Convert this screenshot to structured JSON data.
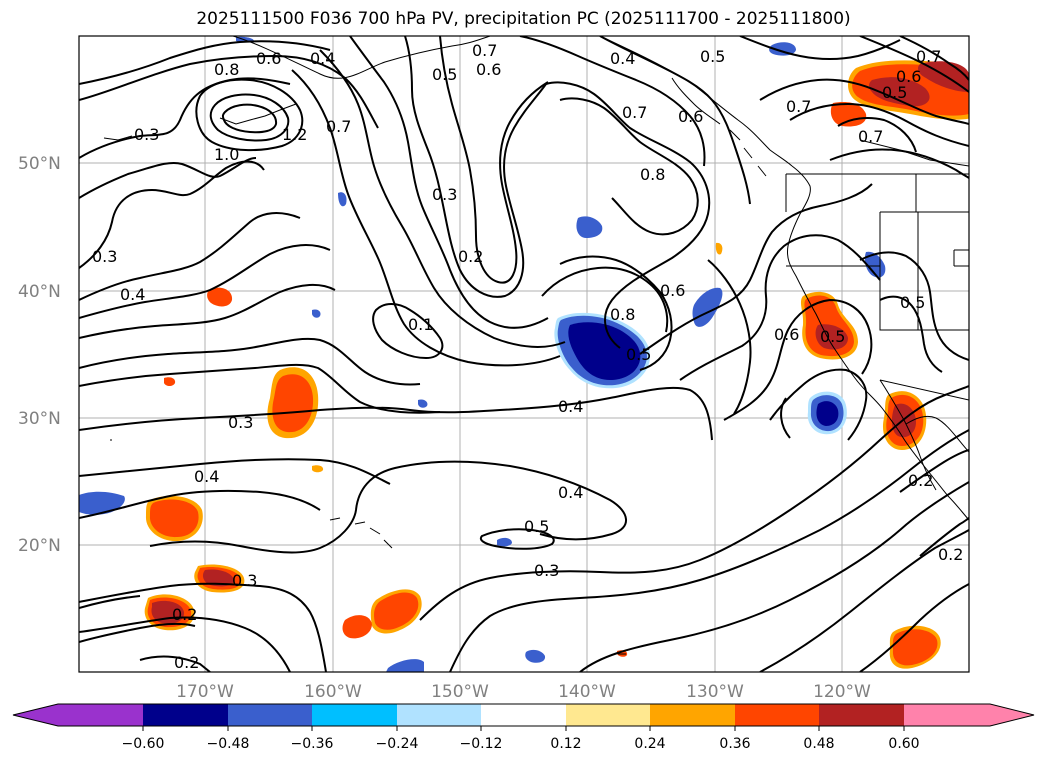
{
  "title": "2025111500 F036 700 hPa PV, precipitation PC (2025111700 - 2025111800)",
  "map": {
    "lat_labels": [
      "50°N",
      "40°N",
      "30°N",
      "20°N"
    ],
    "lon_labels": [
      "170°W",
      "160°W",
      "150°W",
      "140°W",
      "130°W",
      "120°W"
    ],
    "contour_labels": [
      "0.7",
      "0.6",
      "0.4",
      "0.5",
      "0.6",
      "0.8",
      "0.5",
      "0.7",
      "0.4",
      "0.6",
      "0.7",
      "1.2",
      "1.0",
      "0.7",
      "0.3",
      "0.3",
      "0.4",
      "0.3",
      "0.2",
      "0.8",
      "0.7",
      "0.8",
      "0.6",
      "0.5",
      "0.1",
      "0.5",
      "0.6",
      "0.4",
      "0.3",
      "0.4",
      "0.4",
      "0.5",
      "0.3",
      "0.3",
      "0.2",
      "0.2",
      "0.2",
      "0.2",
      "0.5",
      "0.6",
      "0.7",
      "0.5"
    ]
  },
  "colorbar": {
    "ticks": [
      "−0.60",
      "−0.48",
      "−0.36",
      "−0.24",
      "−0.12",
      "0.12",
      "0.24",
      "0.36",
      "0.48",
      "0.60"
    ],
    "colors": [
      "#9a32cd",
      "#00008b",
      "#3a5fcd",
      "#00bfff",
      "#b0e2ff",
      "#ffffff",
      "#ffe890",
      "#ffa500",
      "#ff4500",
      "#b22222",
      "#ff82ab"
    ]
  }
}
